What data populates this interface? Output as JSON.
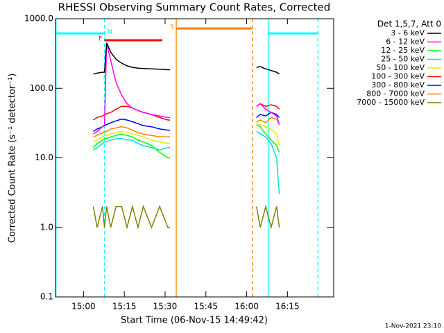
{
  "chart_data": {
    "type": "line",
    "title": "RHESSI Observing Summary Count Rates, Corrected",
    "xlabel": "Start Time (06-Nov-15 14:49:42)",
    "ylabel": "Corrected Count Rate (s⁻¹ detector⁻¹)",
    "footer": "1-Nov-2021 23:10",
    "legend_title": "Det 1,5,7, Att 0",
    "log_y": true,
    "xlim": [
      889.7,
      992
    ],
    "ylim": [
      0.1,
      1000
    ],
    "xticks": [
      {
        "value": 900,
        "label": "15:00"
      },
      {
        "value": 915,
        "label": "15:15"
      },
      {
        "value": 930,
        "label": "15:30"
      },
      {
        "value": 945,
        "label": "15:45"
      },
      {
        "value": 960,
        "label": "16:00"
      },
      {
        "value": 975,
        "label": "16:15"
      }
    ],
    "yticks": [
      0.1,
      {
        "value": 1,
        "label": "1.0"
      },
      {
        "value": 10,
        "label": "10.0"
      },
      {
        "value": 100,
        "label": "100.0"
      },
      {
        "value": 1000,
        "label": "1000.0"
      }
    ],
    "x": [
      903.6,
      905,
      907,
      907.7,
      908.5,
      910,
      912,
      914,
      916,
      918,
      920,
      922,
      925,
      928,
      931,
      931.8,
      935,
      963.6,
      965,
      967,
      969,
      971,
      972
    ],
    "series": [
      {
        "name": "7000 - 15000 keV",
        "color": "#808000",
        "values": [
          2,
          1,
          2,
          1,
          2,
          1,
          2,
          2,
          1,
          2,
          1,
          2,
          1,
          2,
          1,
          1,
          null,
          2,
          1,
          2,
          1,
          2,
          1
        ]
      },
      {
        "name": "800 - 7000 keV",
        "color": "#ff8000",
        "values": [
          20,
          21,
          23,
          24,
          24,
          26,
          27,
          28,
          27,
          25,
          23,
          22,
          21,
          20,
          20,
          20,
          null,
          33,
          35,
          32,
          38,
          36,
          30
        ]
      },
      {
        "name": "300 - 800 keV",
        "color": "#0000ff",
        "values": [
          24,
          26,
          28,
          29,
          30,
          32,
          34,
          36,
          35,
          33,
          31,
          29,
          28,
          26,
          25,
          25,
          null,
          38,
          42,
          40,
          45,
          42,
          38
        ]
      },
      {
        "name": "100 - 300 keV",
        "color": "#ff0000",
        "values": [
          35,
          38,
          40,
          42,
          43,
          45,
          50,
          55,
          55,
          52,
          48,
          45,
          42,
          38,
          35,
          35,
          null,
          55,
          60,
          55,
          58,
          55,
          50
        ]
      },
      {
        "name": "50 - 100 keV",
        "color": "#e8e800",
        "values": [
          17,
          18,
          20,
          21,
          21,
          22,
          23,
          24,
          23,
          22,
          21,
          20,
          18,
          17,
          16,
          16,
          null,
          32,
          30,
          28,
          26,
          22,
          15
        ]
      },
      {
        "name": "25 - 50 keV",
        "color": "#00e0e0",
        "values": [
          13,
          14,
          16,
          17,
          17,
          18,
          19,
          19,
          18,
          18,
          16,
          15,
          14,
          13,
          14,
          14,
          null,
          24,
          22,
          20,
          16,
          10,
          3
        ]
      },
      {
        "name": "12 - 25 keV",
        "color": "#00ff00",
        "values": [
          14,
          16,
          18,
          19,
          19,
          20,
          21,
          22,
          21,
          20,
          18,
          17,
          15,
          12,
          10,
          10,
          null,
          30,
          28,
          22,
          18,
          15,
          12
        ]
      },
      {
        "name": "6 - 12 keV",
        "color": "#ff00ff",
        "values": [
          22,
          24,
          28,
          30,
          450,
          250,
          120,
          80,
          60,
          52,
          48,
          45,
          42,
          40,
          38,
          38,
          null,
          55,
          60,
          50,
          45,
          40,
          30
        ]
      },
      {
        "name": "3 - 6 keV",
        "color": "#000000",
        "values": [
          160,
          165,
          170,
          170,
          450,
          330,
          260,
          230,
          210,
          200,
          195,
          192,
          190,
          188,
          185,
          185,
          null,
          200,
          205,
          190,
          180,
          170,
          160
        ]
      }
    ],
    "flags": [
      {
        "label": "N",
        "color": "#00ffff",
        "x0": 889.7,
        "x1": 907.7,
        "level": 616
      },
      {
        "color": "#00ffff",
        "x0": 967.9,
        "x1": 986.2,
        "level": 616
      },
      {
        "label": "F",
        "color": "#ff0000",
        "x0": 907.7,
        "x1": 929,
        "level": 490
      },
      {
        "label": "S",
        "color": "#ff8000",
        "x0": 934.1,
        "x1": 962,
        "level": 725
      }
    ],
    "vlines": [
      {
        "x": 889.9,
        "color": "#00ffff",
        "dashed": false
      },
      {
        "x": 907.7,
        "color": "#00ffff",
        "dashed": true
      },
      {
        "x": 967.9,
        "color": "#00ffff",
        "dashed": false
      },
      {
        "x": 986.2,
        "color": "#00ffff",
        "dashed": true
      },
      {
        "x": 934.1,
        "color": "#ff8000",
        "dashed": false
      },
      {
        "x": 962.1,
        "color": "#ff8000",
        "dashed": true
      }
    ]
  }
}
